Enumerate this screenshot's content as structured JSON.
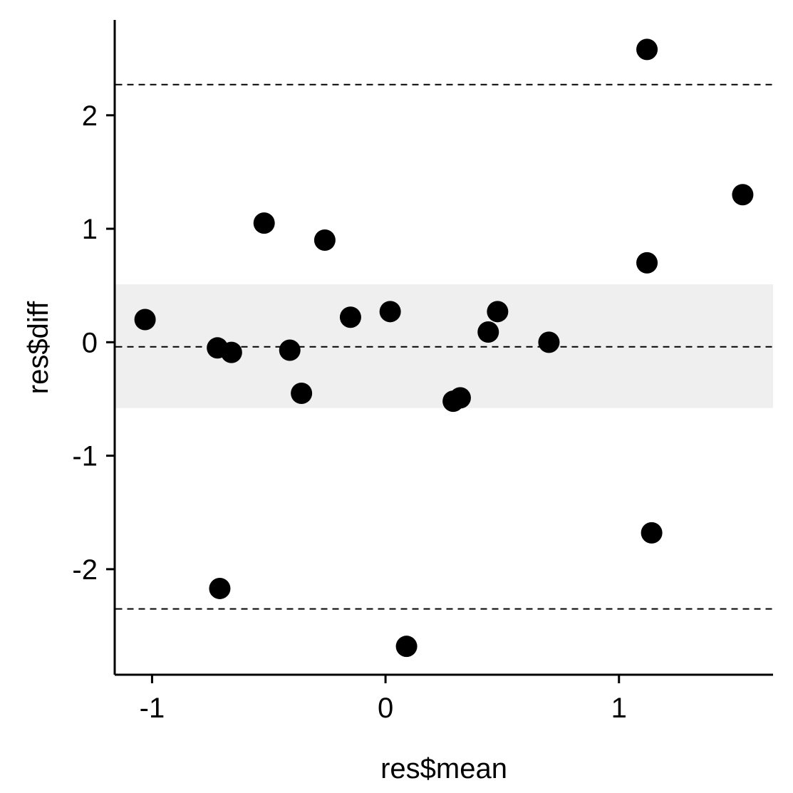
{
  "chart_data": {
    "type": "scatter",
    "title": "",
    "xlabel": "res$mean",
    "ylabel": "res$diff",
    "xlim": [
      -1.16,
      1.66
    ],
    "ylim": [
      -2.93,
      2.84
    ],
    "x_ticks": [
      -1,
      0,
      1
    ],
    "x_tick_labels": [
      "-1",
      "0",
      "1"
    ],
    "y_ticks": [
      -2,
      -1,
      0,
      1,
      2
    ],
    "y_tick_labels": [
      "-2",
      "-1",
      "0",
      "1",
      "2"
    ],
    "grid": false,
    "legend": "none",
    "reference_lines": {
      "upper_limit": 2.27,
      "mean_diff": -0.04,
      "lower_limit": -2.35
    },
    "confidence_band": [
      -0.58,
      0.51
    ],
    "points": [
      {
        "x": -1.03,
        "y": 0.2
      },
      {
        "x": -0.72,
        "y": -0.05
      },
      {
        "x": -0.66,
        "y": -0.09
      },
      {
        "x": -0.52,
        "y": 1.05
      },
      {
        "x": -0.41,
        "y": -0.07
      },
      {
        "x": -0.36,
        "y": -0.45
      },
      {
        "x": -0.26,
        "y": 0.9
      },
      {
        "x": -0.15,
        "y": 0.22
      },
      {
        "x": 0.02,
        "y": 0.27
      },
      {
        "x": 0.29,
        "y": -0.52
      },
      {
        "x": 0.32,
        "y": -0.49
      },
      {
        "x": 0.44,
        "y": 0.09
      },
      {
        "x": 0.48,
        "y": 0.27
      },
      {
        "x": 0.7,
        "y": 0.0
      },
      {
        "x": 1.12,
        "y": 0.7
      },
      {
        "x": 1.12,
        "y": 2.58
      },
      {
        "x": 1.14,
        "y": -1.68
      },
      {
        "x": 1.53,
        "y": 1.3
      },
      {
        "x": -0.71,
        "y": -2.17
      },
      {
        "x": 0.09,
        "y": -2.68
      }
    ],
    "colors": {
      "point": "#000000",
      "band": "#efefef",
      "line": "#000000"
    }
  }
}
